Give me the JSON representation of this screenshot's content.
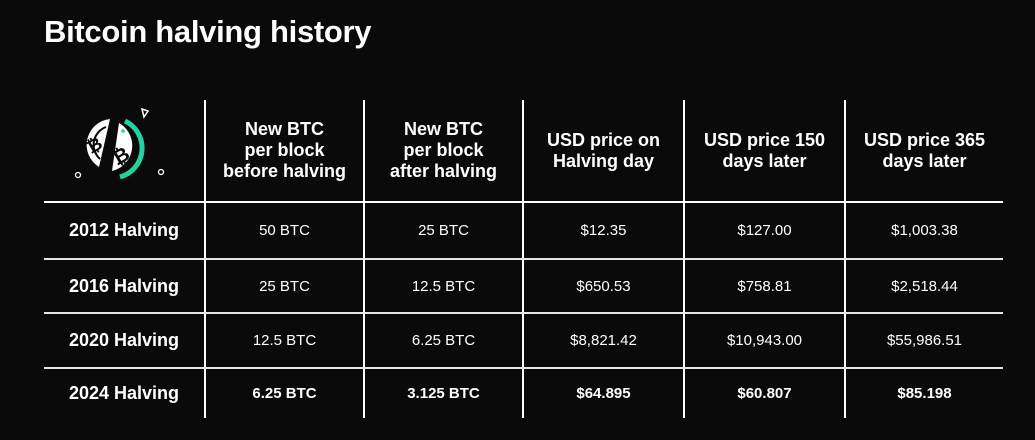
{
  "title": "Bitcoin halving history",
  "logo_icon": "bitcoin-halving-icon",
  "colors": {
    "background": "#0a0a0a",
    "text": "#ffffff",
    "accent": "#21d3a0"
  },
  "chart_data": {
    "type": "table",
    "columns": [
      "New BTC\nper block\nbefore halving",
      "New BTC\nper block\nafter halving",
      "USD price on\nHalving day",
      "USD price 150\ndays later",
      "USD price 365\ndays later"
    ],
    "rows": [
      {
        "label": "2012 Halving",
        "cells": [
          "50 BTC",
          "25 BTC",
          "$12.35",
          "$127.00",
          "$1,003.38"
        ]
      },
      {
        "label": "2016 Halving",
        "cells": [
          "25 BTC",
          "12.5 BTC",
          "$650.53",
          "$758.81",
          "$2,518.44"
        ]
      },
      {
        "label": "2020 Halving",
        "cells": [
          "12.5 BTC",
          "6.25 BTC",
          "$8,821.42",
          "$10,943.00",
          "$55,986.51"
        ]
      },
      {
        "label": "2024 Halving",
        "cells": [
          "6.25 BTC",
          "3.125 BTC",
          "$64.895",
          "$60.807",
          "$85.198"
        ]
      }
    ]
  }
}
